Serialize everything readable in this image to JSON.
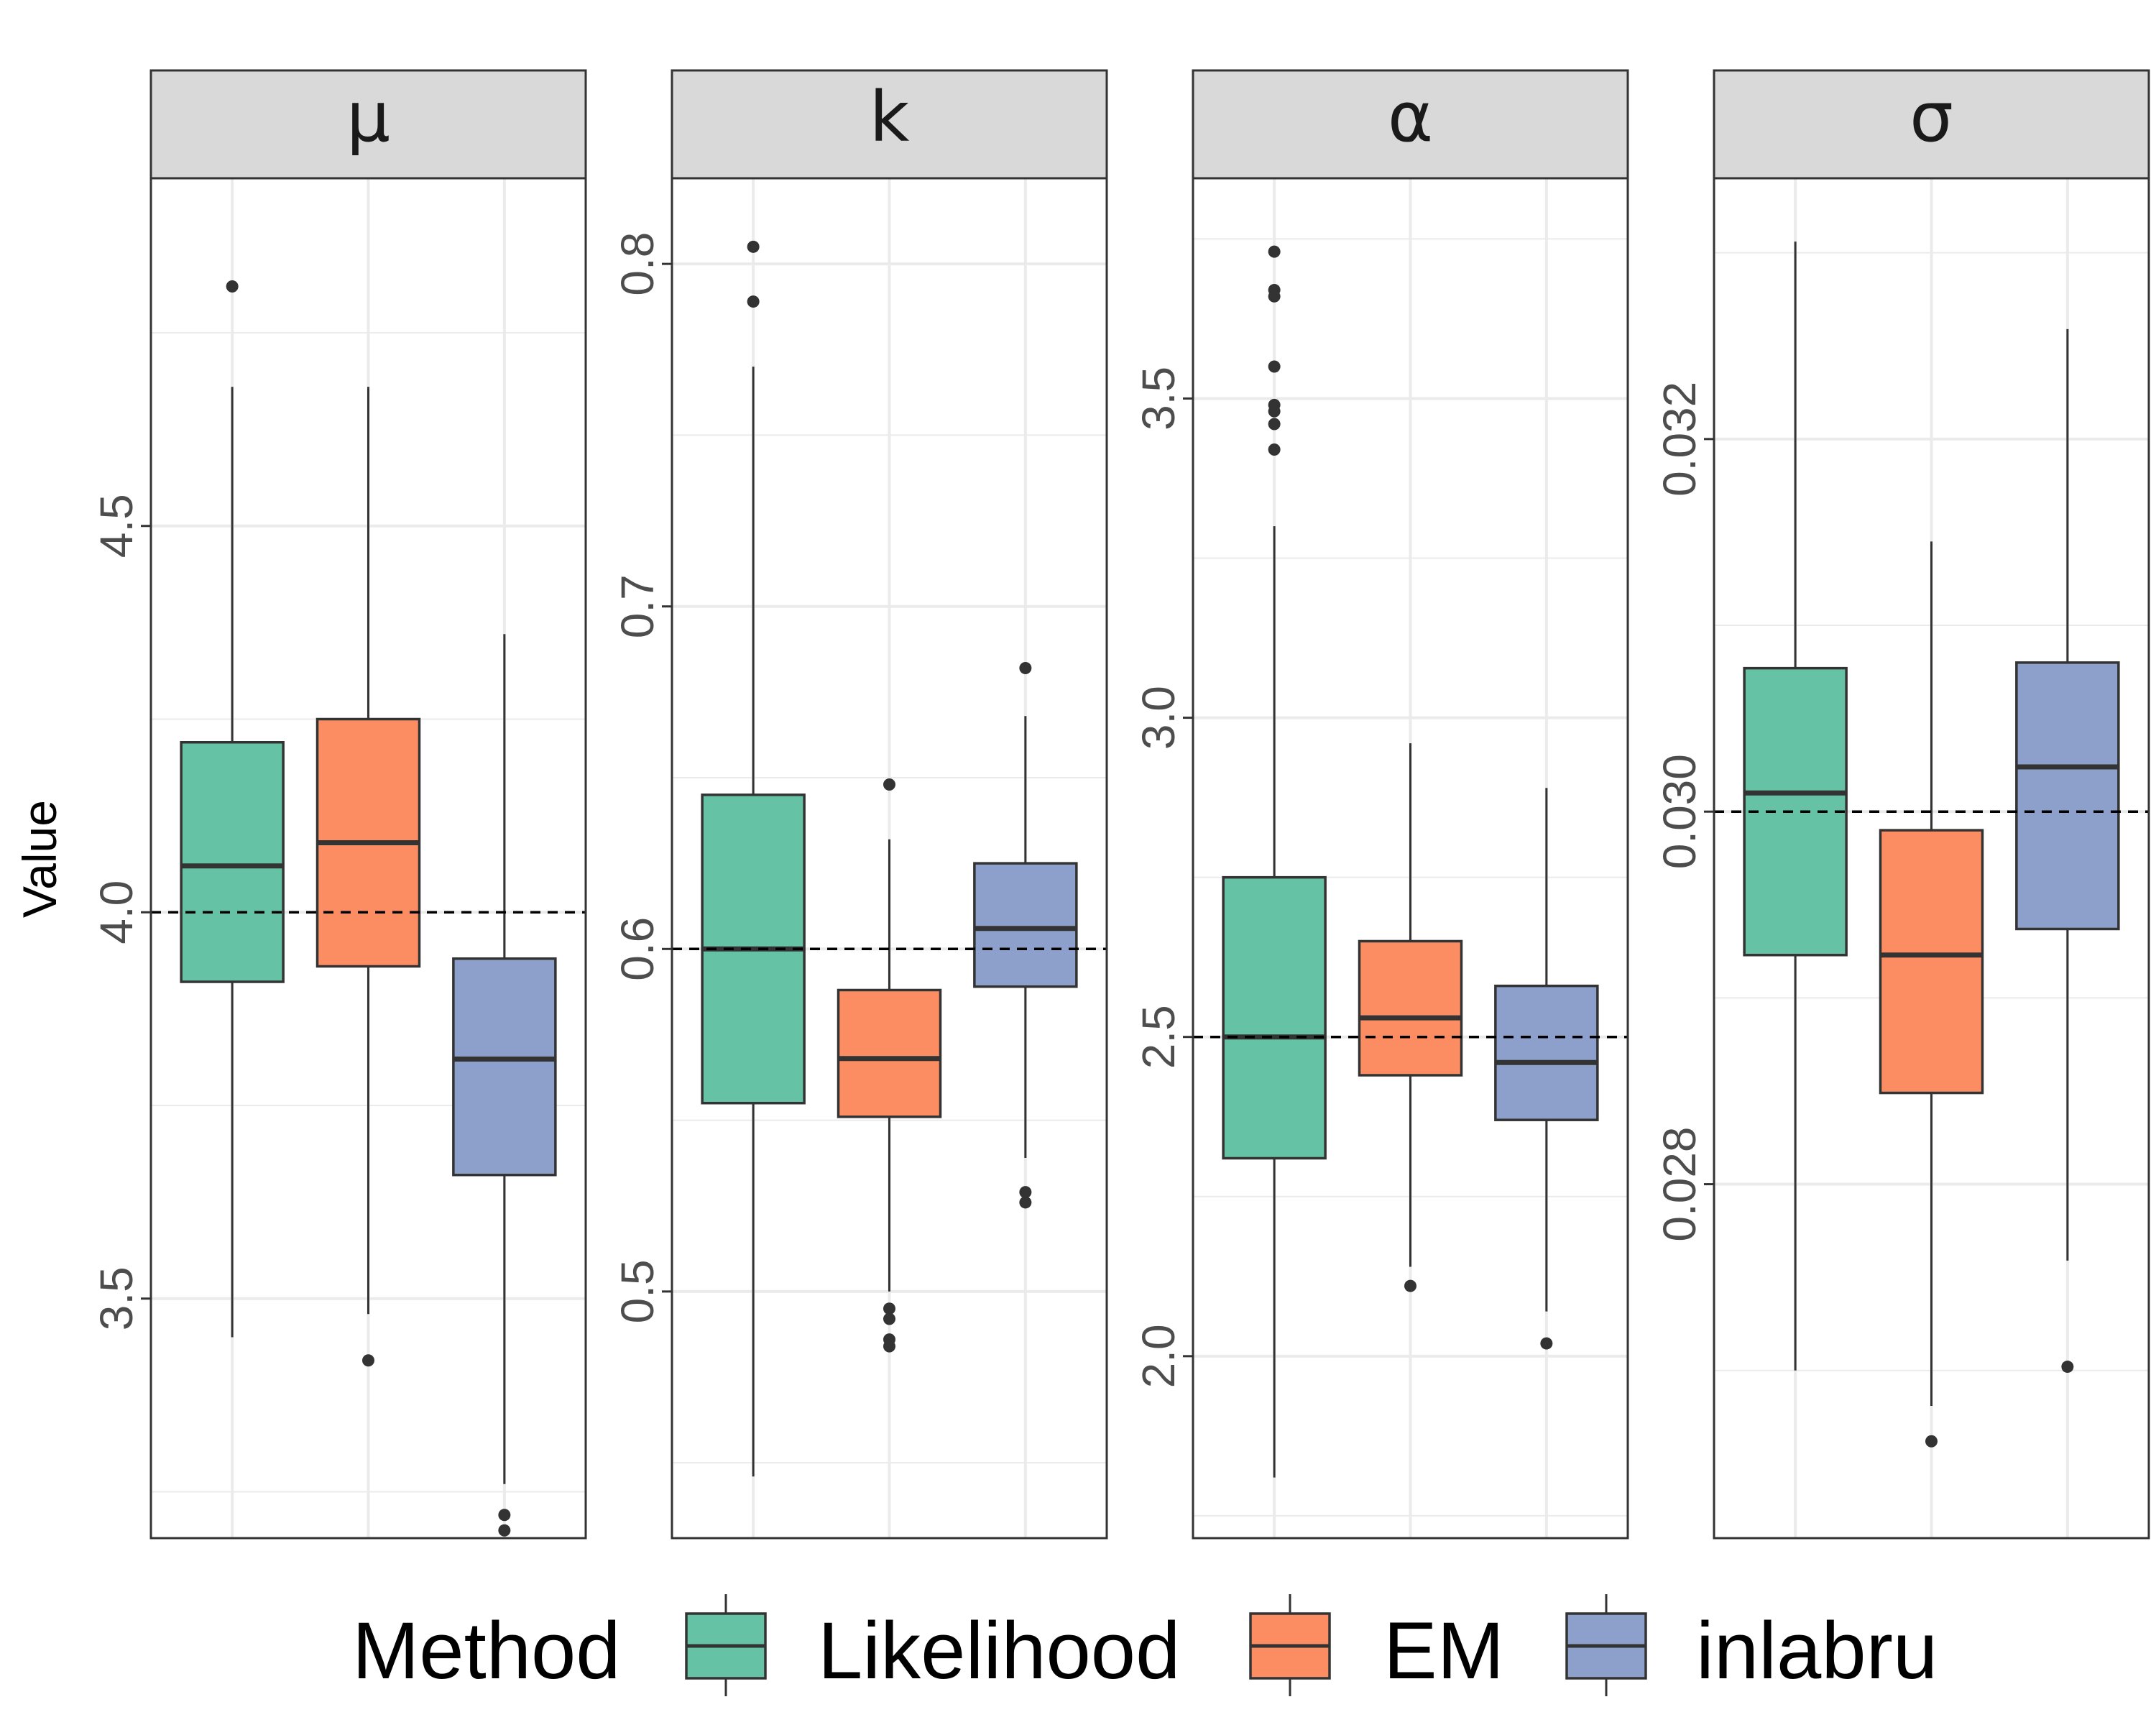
{
  "chart_data": {
    "type": "boxplot",
    "ylabel": "Value",
    "legend": {
      "title": "Method",
      "position": "bottom",
      "entries": [
        {
          "name": "Likelihood",
          "color": "#66c2a5"
        },
        {
          "name": "EM",
          "color": "#fc8d62"
        },
        {
          "name": "inlabru",
          "color": "#8da0cb"
        }
      ]
    },
    "panels": [
      {
        "title": "μ",
        "true_value": 4.0,
        "ylim": [
          3.19,
          4.95
        ],
        "major_ticks": [
          3.5,
          4.0,
          4.5
        ],
        "tick_labels": [
          "3.5",
          "4.0",
          "4.5"
        ],
        "minor_ticks": [
          3.25,
          3.75,
          4.25,
          4.75
        ],
        "boxes": [
          {
            "method": "Likelihood",
            "low": 3.45,
            "q1": 3.91,
            "median": 4.06,
            "q3": 4.22,
            "high": 4.68,
            "outliers": [
              4.81
            ]
          },
          {
            "method": "EM",
            "low": 3.48,
            "q1": 3.93,
            "median": 4.09,
            "q3": 4.25,
            "high": 4.68,
            "outliers": [
              3.42
            ]
          },
          {
            "method": "inlabru",
            "low": 3.26,
            "q1": 3.66,
            "median": 3.81,
            "q3": 3.94,
            "high": 4.36,
            "outliers": [
              3.22,
              3.2
            ]
          }
        ]
      },
      {
        "title": "k",
        "true_value": 0.6,
        "ylim": [
          0.428,
          0.825
        ],
        "major_ticks": [
          0.5,
          0.6,
          0.7,
          0.8
        ],
        "tick_labels": [
          "0.5",
          "0.6",
          "0.7",
          "0.8"
        ],
        "minor_ticks": [
          0.45,
          0.55,
          0.65,
          0.75
        ],
        "boxes": [
          {
            "method": "Likelihood",
            "low": 0.446,
            "q1": 0.555,
            "median": 0.6,
            "q3": 0.645,
            "high": 0.77,
            "outliers": [
              0.805,
              0.789
            ]
          },
          {
            "method": "EM",
            "low": 0.5,
            "q1": 0.551,
            "median": 0.568,
            "q3": 0.588,
            "high": 0.632,
            "outliers": [
              0.648,
              0.495,
              0.492,
              0.486,
              0.484
            ]
          },
          {
            "method": "inlabru",
            "low": 0.539,
            "q1": 0.589,
            "median": 0.606,
            "q3": 0.625,
            "high": 0.668,
            "outliers": [
              0.682,
              0.529,
              0.526
            ]
          }
        ]
      },
      {
        "title": "α",
        "true_value": 2.5,
        "ylim": [
          1.715,
          3.845
        ],
        "major_ticks": [
          2.0,
          2.5,
          3.0,
          3.5
        ],
        "tick_labels": [
          "2.0",
          "2.5",
          "3.0",
          "3.5"
        ],
        "minor_ticks": [
          1.75,
          2.25,
          2.75,
          3.25,
          3.75
        ],
        "boxes": [
          {
            "method": "Likelihood",
            "low": 1.81,
            "q1": 2.31,
            "median": 2.5,
            "q3": 2.75,
            "high": 3.3,
            "outliers": [
              3.73,
              3.67,
              3.66,
              3.55,
              3.49,
              3.48,
              3.46,
              3.42
            ]
          },
          {
            "method": "EM",
            "low": 2.14,
            "q1": 2.44,
            "median": 2.53,
            "q3": 2.65,
            "high": 2.96,
            "outliers": [
              2.11
            ]
          },
          {
            "method": "inlabru",
            "low": 2.07,
            "q1": 2.37,
            "median": 2.46,
            "q3": 2.58,
            "high": 2.89,
            "outliers": [
              2.02
            ]
          }
        ]
      },
      {
        "title": "σ",
        "true_value": 0.03,
        "ylim": [
          0.0261,
          0.0334
        ],
        "major_ticks": [
          0.028,
          0.03,
          0.032
        ],
        "tick_labels": [
          "0.028",
          "0.030",
          "0.032"
        ],
        "minor_ticks": [
          0.027,
          0.029,
          0.031,
          0.033
        ],
        "boxes": [
          {
            "method": "Likelihood",
            "low": 0.027,
            "q1": 0.02923,
            "median": 0.0301,
            "q3": 0.03077,
            "high": 0.03306,
            "outliers": []
          },
          {
            "method": "EM",
            "low": 0.02681,
            "q1": 0.02849,
            "median": 0.02923,
            "q3": 0.0299,
            "high": 0.03145,
            "outliers": [
              0.02662
            ]
          },
          {
            "method": "inlabru",
            "low": 0.02759,
            "q1": 0.02937,
            "median": 0.03024,
            "q3": 0.0308,
            "high": 0.03259,
            "outliers": [
              0.02702
            ]
          }
        ]
      }
    ]
  }
}
